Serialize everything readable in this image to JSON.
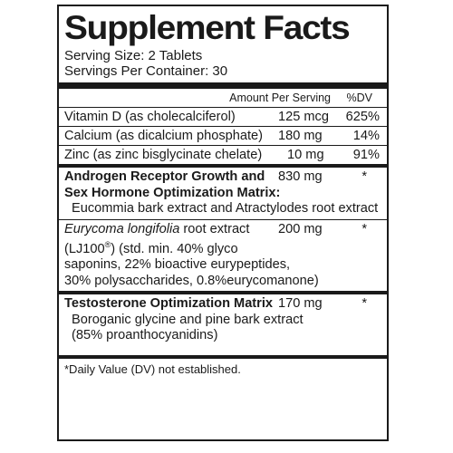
{
  "title": "Supplement Facts",
  "serving_size": "Serving Size: 2 Tablets",
  "servings_per_container": "Servings Per Container: 30",
  "header": {
    "amount": "Amount Per Serving",
    "dv": "%DV"
  },
  "nutrients": [
    {
      "name": "Vitamin D (as cholecalciferol)",
      "amount": "125 mcg",
      "dv": "625%"
    },
    {
      "name": "Calcium (as dicalcium phosphate)",
      "amount": "180 mg",
      "dv": "14%"
    },
    {
      "name": "Zinc (as zinc bisglycinate chelate)",
      "amount": "10 mg",
      "dv": "91%"
    }
  ],
  "blend1": {
    "line1": "Androgen Receptor Growth and",
    "line2": "Sex Hormone Optimization Matrix:",
    "amount": "830 mg",
    "dv": "*",
    "sub": "Eucommia bark extract and Atractylodes root extract"
  },
  "ingredient2": {
    "name_italic": "Eurycoma longifolia",
    "name_rest": " root extract",
    "line2a": "(LJ100",
    "reg": "®",
    "line2b": ") (std. min. 40% glyco",
    "line3": "saponins, 22% bioactive eurypeptides,",
    "line4": "30% polysaccharides, 0.8%eurycomanone)",
    "amount": "200 mg",
    "dv": "*"
  },
  "blend3": {
    "name": "Testosterone Optimization Matrix",
    "amount": "170 mg",
    "dv": "*",
    "sub1": "Boroganic glycine and pine bark extract",
    "sub2": "(85% proanthocyanidins)"
  },
  "footnote": "*Daily Value (DV) not established."
}
